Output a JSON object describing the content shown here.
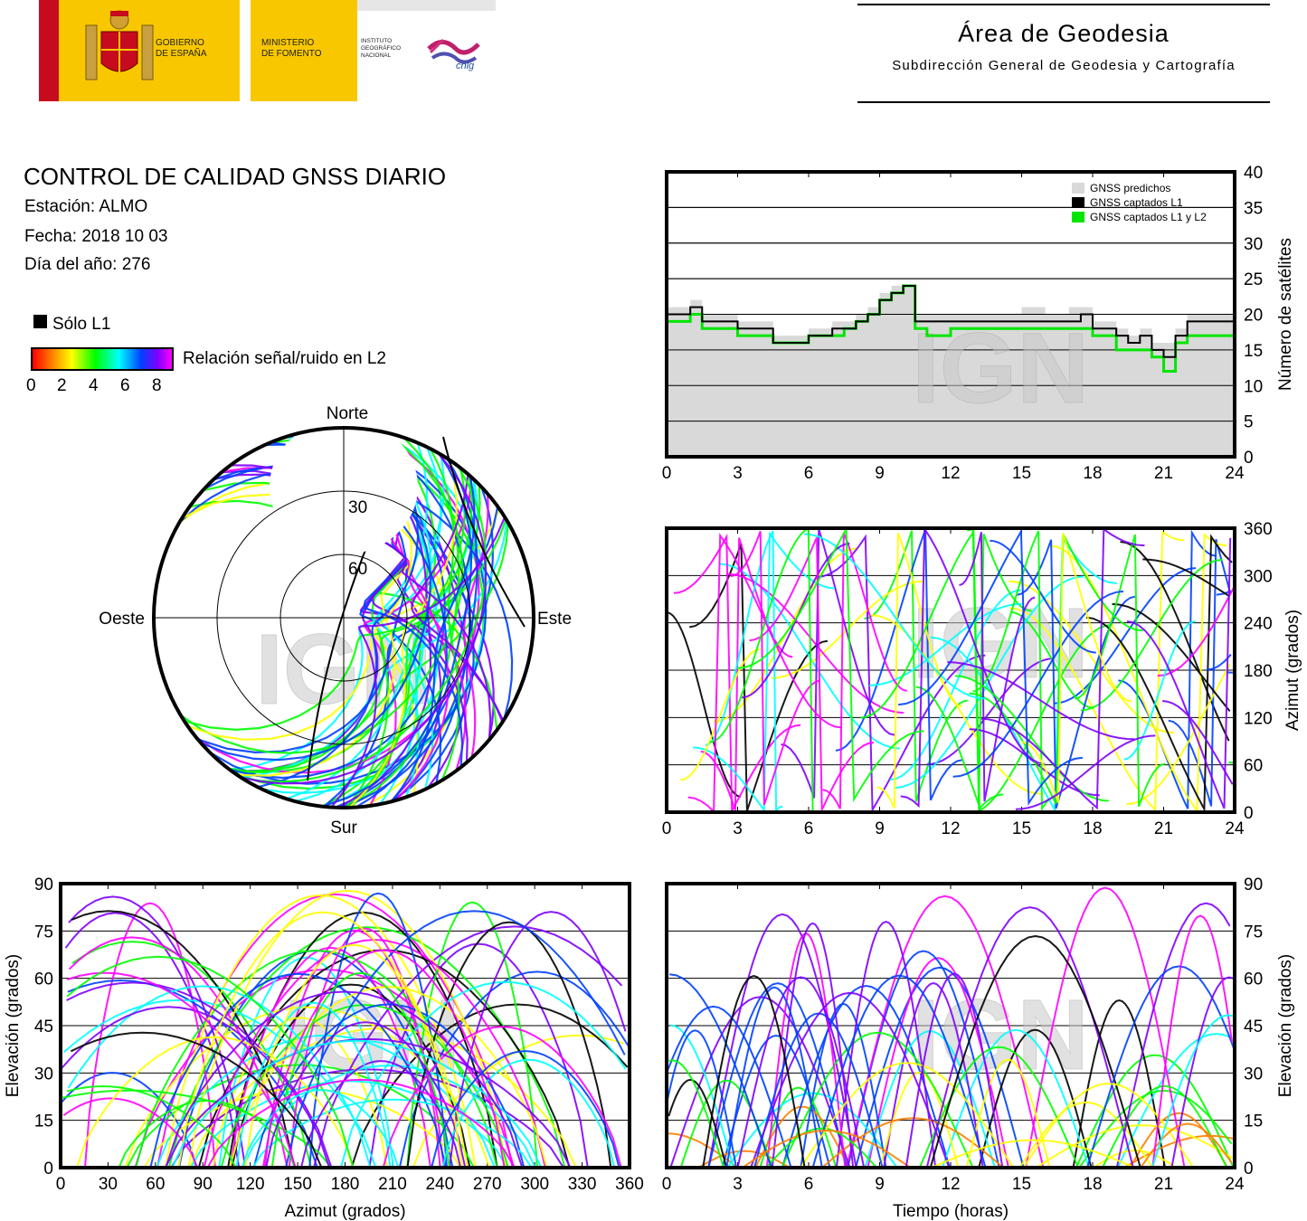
{
  "header": {
    "gobierno": [
      "GOBIERNO",
      "DE ESPAÑA"
    ],
    "ministerio": [
      "MINISTERIO",
      "DE FOMENTO"
    ],
    "instituto": [
      "INSTITUTO",
      "GEOGRÁFICO",
      "NACIONAL"
    ],
    "cnig": "cnig",
    "area_title": "Área de Geodesia",
    "area_subtitle": "Subdirección General de Geodesia y Cartografía"
  },
  "report": {
    "title": "CONTROL DE CALIDAD GNSS DIARIO",
    "station": "Estación: ALMO",
    "date": "Fecha: 2018 10 03",
    "doy": "Día del año: 276"
  },
  "legend": {
    "l1_only": "Sólo L1",
    "snr_label": "Relación señal/ruido en L2",
    "snr_ticks": [
      "0",
      "2",
      "4",
      "6",
      "8"
    ]
  },
  "watermark": "IGN",
  "colors": {
    "predicted": "#d9d9d9",
    "l1": "#000000",
    "l1l2": "#00e600",
    "snr_scale": [
      "#ff0000",
      "#ff8000",
      "#ffff00",
      "#00ff00",
      "#00ffff",
      "#0040ff",
      "#8000ff",
      "#ff00ff"
    ]
  },
  "chart_data": [
    {
      "type": "line",
      "id": "satellite-count",
      "ylabel": "Número de satélites",
      "xlim": [
        0,
        24
      ],
      "ylim": [
        0,
        40
      ],
      "xticks": [
        "0",
        "3",
        "6",
        "9",
        "12",
        "15",
        "18",
        "21",
        "24"
      ],
      "yticks": [
        "0",
        "5",
        "10",
        "15",
        "20",
        "25",
        "30",
        "35",
        "40"
      ],
      "legend_position": "top-right",
      "series": [
        {
          "name": "GNSS predichos",
          "x": [
            0,
            0.5,
            1,
            1.5,
            2,
            3,
            4,
            4.5,
            5,
            6,
            7,
            7.5,
            8,
            8.5,
            9,
            9.5,
            10,
            10.5,
            11,
            12,
            13,
            14,
            15,
            16,
            17,
            17.5,
            18,
            19,
            19.5,
            20,
            20.5,
            21,
            21.5,
            22,
            23,
            24
          ],
          "values": [
            21,
            21,
            22,
            20,
            20,
            19,
            19,
            17,
            17,
            18,
            19,
            19,
            20,
            21,
            23,
            24,
            24,
            20,
            20,
            20,
            20,
            20,
            21,
            20,
            21,
            21,
            19,
            18,
            17,
            18,
            16,
            16,
            18,
            20,
            20,
            20
          ]
        },
        {
          "name": "GNSS captados L1",
          "x": [
            0,
            0.5,
            1,
            1.5,
            2,
            3,
            4,
            4.5,
            5,
            6,
            7,
            7.5,
            8,
            8.5,
            9,
            9.5,
            10,
            10.5,
            11,
            12,
            13,
            14,
            15,
            16,
            17,
            17.5,
            18,
            19,
            19.5,
            20,
            20.5,
            21,
            21.5,
            22,
            23,
            24
          ],
          "values": [
            20,
            20,
            21,
            19,
            19,
            18,
            18,
            16,
            16,
            17,
            18,
            18,
            19,
            20,
            22,
            23,
            24,
            19,
            19,
            19,
            19,
            19,
            19,
            19,
            19,
            20,
            18,
            17,
            16,
            17,
            15,
            14,
            17,
            19,
            19,
            19
          ]
        },
        {
          "name": "GNSS captados L1 y L2",
          "x": [
            0,
            0.5,
            1,
            1.5,
            2,
            3,
            4,
            4.5,
            5,
            6,
            7,
            7.5,
            8,
            8.5,
            9,
            9.5,
            10,
            10.5,
            11,
            12,
            13,
            14,
            15,
            16,
            17,
            17.5,
            18,
            19,
            19.5,
            20,
            20.5,
            21,
            21.5,
            22,
            23,
            24
          ],
          "values": [
            19,
            19,
            20,
            18,
            18,
            17,
            17,
            16,
            16,
            17,
            17,
            18,
            19,
            20,
            22,
            23,
            24,
            18,
            17,
            18,
            18,
            18,
            18,
            18,
            18,
            18,
            17,
            15,
            15,
            15,
            14,
            12,
            16,
            17,
            17,
            18
          ]
        }
      ]
    },
    {
      "type": "scatter",
      "id": "skyplot",
      "cardinals": [
        "Norte",
        "Este",
        "Sur",
        "Oeste"
      ],
      "ring_labels": [
        "30",
        "60"
      ]
    },
    {
      "type": "scatter",
      "id": "azimuth-vs-time",
      "ylabel": "Azimut (grados)",
      "xlim": [
        0,
        24
      ],
      "ylim": [
        0,
        360
      ],
      "xticks": [
        "0",
        "3",
        "6",
        "9",
        "12",
        "15",
        "18",
        "21",
        "24"
      ],
      "yticks": [
        "0",
        "60",
        "120",
        "180",
        "240",
        "300",
        "360"
      ]
    },
    {
      "type": "scatter",
      "id": "elevation-vs-azimuth",
      "xlabel": "Azimut (grados)",
      "ylabel": "Elevación (grados)",
      "xlim": [
        0,
        360
      ],
      "ylim": [
        0,
        90
      ],
      "xticks": [
        "0",
        "30",
        "60",
        "90",
        "120",
        "150",
        "180",
        "210",
        "240",
        "270",
        "300",
        "330",
        "360"
      ],
      "yticks": [
        "0",
        "15",
        "30",
        "45",
        "60",
        "75",
        "90"
      ]
    },
    {
      "type": "scatter",
      "id": "elevation-vs-time",
      "xlabel": "Tiempo (horas)",
      "ylabel": "Elevación (grados)",
      "xlim": [
        0,
        24
      ],
      "ylim": [
        0,
        90
      ],
      "xticks": [
        "0",
        "3",
        "6",
        "9",
        "12",
        "15",
        "18",
        "21",
        "24"
      ],
      "yticks": [
        "0",
        "15",
        "30",
        "45",
        "60",
        "75",
        "90"
      ]
    }
  ]
}
